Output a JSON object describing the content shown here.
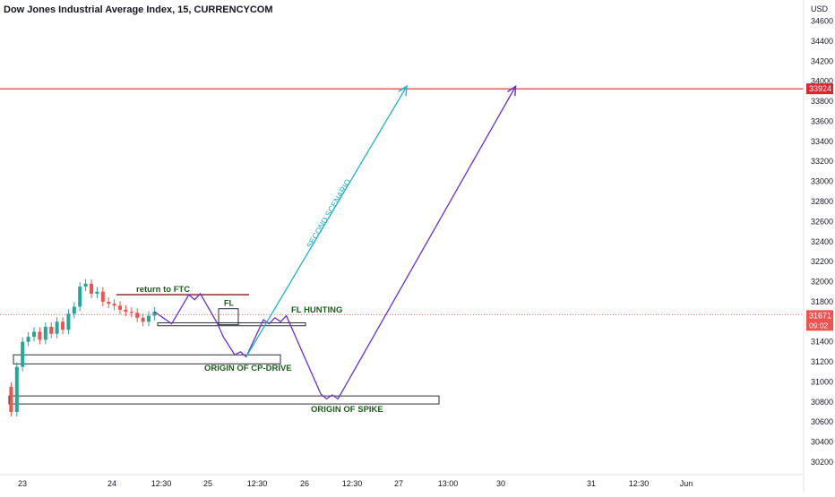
{
  "header": {
    "title": "Dow Jones Industrial Average Index, 15, CURRENCYCOM"
  },
  "axis": {
    "currency": "USD"
  },
  "price_badge": {
    "value": "31671",
    "countdown": "09:02"
  },
  "resistance_badge": {
    "value": "33924"
  },
  "colors": {
    "up": "#26a69a",
    "down": "#ef5350",
    "resistance": "#e0242f",
    "purple": "#6a2fd1",
    "cyan": "#1fb3c7",
    "ftc": "#8b1a1a",
    "label_green": "#1e5c1e",
    "grid": "#e0e3eb"
  },
  "annotations": {
    "return_to_ftc": "return to FTC",
    "fl": "FL",
    "fl_hunting": "FL HUNTING",
    "origin_cp_drive": "ORIGIN OF CP-DRIVE",
    "origin_spike": "ORIGIN OF SPIKE",
    "second_scenario": "SECOND SCENARIO"
  },
  "chart_data": {
    "type": "line",
    "title": "Dow Jones Industrial Average Index, 15, CURRENCYCOM",
    "ylabel": "USD",
    "ylim": [
      30000,
      34800
    ],
    "y_ticks": [
      30200,
      30400,
      30600,
      30800,
      31000,
      31200,
      31400,
      31600,
      31800,
      32000,
      32200,
      32400,
      32600,
      32800,
      33000,
      33200,
      33400,
      33600,
      33800,
      34000,
      34200,
      34400,
      34600
    ],
    "x_ticks": [
      "23",
      "24",
      "12:30",
      "25",
      "12:30",
      "26",
      "12:30",
      "27",
      "13:00",
      "30",
      "31",
      "12:30",
      "Jun"
    ],
    "resistance_level": 33924,
    "current_price": 31671,
    "price_series": [
      [
        0,
        30950
      ],
      [
        1,
        30700
      ],
      [
        2,
        31150
      ],
      [
        3,
        31400
      ],
      [
        4,
        31450
      ],
      [
        5,
        31500
      ],
      [
        6,
        31420
      ],
      [
        7,
        31550
      ],
      [
        8,
        31480
      ],
      [
        9,
        31600
      ],
      [
        10,
        31520
      ],
      [
        11,
        31680
      ],
      [
        12,
        31750
      ],
      [
        13,
        31950
      ],
      [
        14,
        31980
      ],
      [
        15,
        31880
      ],
      [
        16,
        31900
      ],
      [
        17,
        31800
      ],
      [
        18,
        31780
      ],
      [
        19,
        31760
      ],
      [
        20,
        31720
      ],
      [
        21,
        31700
      ],
      [
        22,
        31690
      ],
      [
        23,
        31640
      ],
      [
        24,
        31600
      ],
      [
        25,
        31660
      ],
      [
        26,
        31700
      ]
    ],
    "projection_primary": [
      [
        26,
        31700
      ],
      [
        29,
        31580
      ],
      [
        32,
        31870
      ],
      [
        33,
        31820
      ],
      [
        34,
        31880
      ],
      [
        37,
        31580
      ],
      [
        38,
        31450
      ],
      [
        40,
        31270
      ],
      [
        41,
        31300
      ],
      [
        42,
        31250
      ],
      [
        45,
        31620
      ],
      [
        46,
        31580
      ],
      [
        47,
        31640
      ],
      [
        48,
        31600
      ],
      [
        49,
        31660
      ],
      [
        55,
        30880
      ],
      [
        56,
        30830
      ],
      [
        57,
        30870
      ],
      [
        58,
        30830
      ],
      [
        89,
        33950
      ]
    ],
    "projection_second": [
      [
        42,
        31250
      ],
      [
        70,
        33950
      ]
    ]
  }
}
